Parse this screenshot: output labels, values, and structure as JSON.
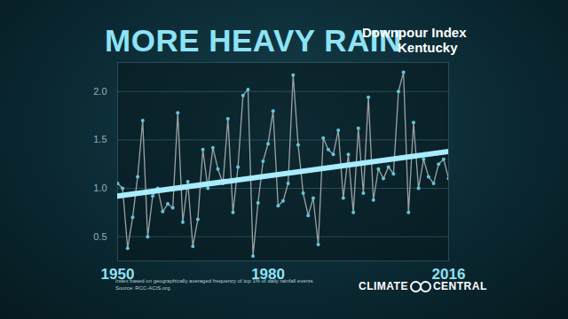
{
  "chart_data": {
    "type": "line",
    "title": "MORE HEAVY RAIN",
    "subtitle": [
      "Downpour Index",
      "Kentucky"
    ],
    "notes": [
      "Index based on geographically averaged frequency of top 1% of daily rainfall events.",
      "Source: RCC-ACIS.org"
    ],
    "logo": [
      "CLIMATE",
      "CENTRAL"
    ],
    "x": [
      1950,
      1951,
      1952,
      1953,
      1954,
      1955,
      1956,
      1957,
      1958,
      1959,
      1960,
      1961,
      1962,
      1963,
      1964,
      1965,
      1966,
      1967,
      1968,
      1969,
      1970,
      1971,
      1972,
      1973,
      1974,
      1975,
      1976,
      1977,
      1978,
      1979,
      1980,
      1981,
      1982,
      1983,
      1984,
      1985,
      1986,
      1987,
      1988,
      1989,
      1990,
      1991,
      1992,
      1993,
      1994,
      1995,
      1996,
      1997,
      1998,
      1999,
      2000,
      2001,
      2002,
      2003,
      2004,
      2005,
      2006,
      2007,
      2008,
      2009,
      2010,
      2011,
      2012,
      2013,
      2014,
      2015,
      2016
    ],
    "values": [
      1.05,
      1.0,
      0.38,
      0.7,
      1.12,
      1.7,
      0.5,
      0.92,
      1.0,
      0.76,
      0.84,
      0.8,
      1.78,
      0.65,
      1.07,
      0.4,
      0.68,
      1.4,
      1.0,
      1.42,
      1.2,
      1.05,
      1.72,
      0.75,
      1.22,
      1.96,
      2.02,
      0.3,
      0.85,
      1.28,
      1.46,
      1.8,
      0.82,
      0.87,
      1.05,
      2.17,
      1.45,
      0.95,
      0.72,
      0.9,
      0.42,
      1.52,
      1.4,
      1.35,
      1.6,
      0.9,
      1.35,
      0.75,
      1.62,
      0.95,
      1.94,
      0.88,
      1.2,
      1.1,
      1.22,
      1.15,
      2.0,
      2.2,
      0.75,
      1.68,
      1.0,
      1.3,
      1.12,
      1.05,
      1.25,
      1.3,
      1.1
    ],
    "color": "#9aa3a6",
    "marker": "circle",
    "trend": {
      "x": [
        1950,
        2016
      ],
      "values": [
        0.92,
        1.38
      ],
      "color": "#a8ecff"
    },
    "xlim": [
      1950,
      2016
    ],
    "xticks": [
      1950,
      1980,
      2016
    ],
    "ylim": [
      0.25,
      2.3
    ],
    "yticks": [
      0.5,
      1,
      1.5,
      2
    ],
    "grid": true
  }
}
